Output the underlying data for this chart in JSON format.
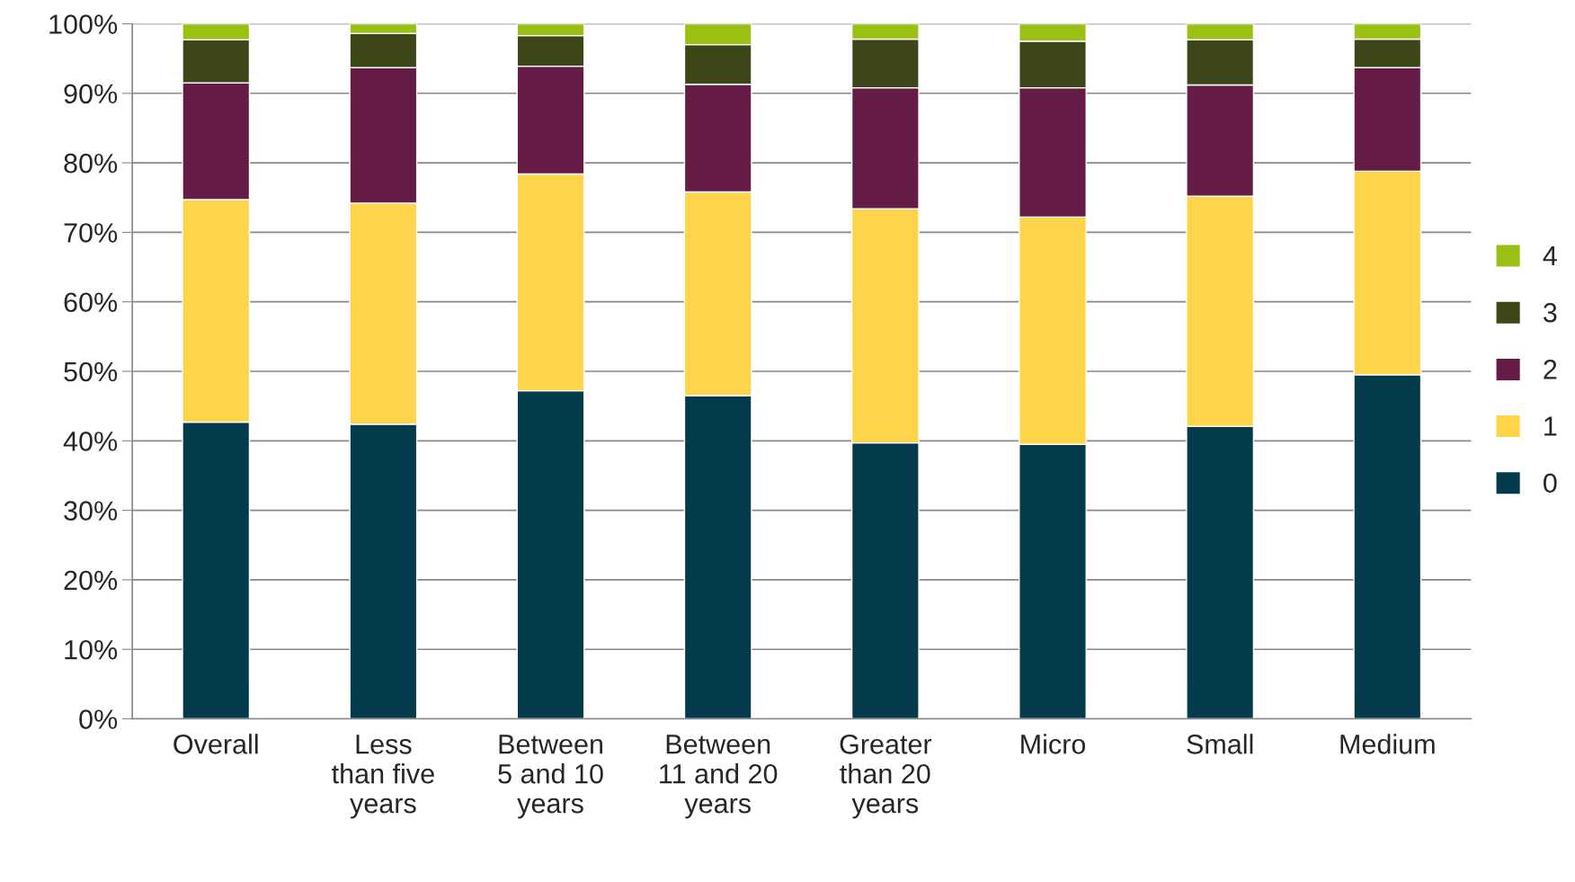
{
  "chart_data": {
    "type": "bar",
    "stacked": true,
    "categories": [
      "Overall",
      "Less\nthan five\nyears",
      "Between\n5 and 10\nyears",
      "Between\n11 and 20\nyears",
      "Greater\nthan 20\nyears",
      "Micro",
      "Small",
      "Medium"
    ],
    "series": [
      {
        "name": "0",
        "color": "#033b4c",
        "values": [
          42.7,
          42.4,
          47.2,
          46.5,
          39.7,
          39.5,
          42.1,
          49.5
        ]
      },
      {
        "name": "1",
        "color": "#fdd44a",
        "values": [
          32.0,
          31.8,
          31.2,
          29.3,
          33.7,
          32.7,
          33.1,
          29.3
        ]
      },
      {
        "name": "2",
        "color": "#641c44",
        "values": [
          16.8,
          19.5,
          15.5,
          15.5,
          17.4,
          18.6,
          16.0,
          14.9
        ]
      },
      {
        "name": "3",
        "color": "#3d4619",
        "values": [
          6.2,
          4.9,
          4.4,
          5.7,
          7.0,
          6.7,
          6.5,
          4.1
        ]
      },
      {
        "name": "4",
        "color": "#99c013",
        "values": [
          2.3,
          1.4,
          1.7,
          3.0,
          2.2,
          2.5,
          2.3,
          2.2
        ]
      }
    ],
    "ylim": [
      0,
      100
    ],
    "yticks": [
      {
        "value": 0,
        "label": "0%"
      },
      {
        "value": 10,
        "label": "10%"
      },
      {
        "value": 20,
        "label": "20%"
      },
      {
        "value": 30,
        "label": "30%"
      },
      {
        "value": 40,
        "label": "40%"
      },
      {
        "value": 50,
        "label": "50%"
      },
      {
        "value": 60,
        "label": "60%"
      },
      {
        "value": 70,
        "label": "70%"
      },
      {
        "value": 80,
        "label": "80%"
      },
      {
        "value": 90,
        "label": "90%"
      },
      {
        "value": 100,
        "label": "100%"
      }
    ],
    "grid": "y",
    "legend": "right"
  }
}
